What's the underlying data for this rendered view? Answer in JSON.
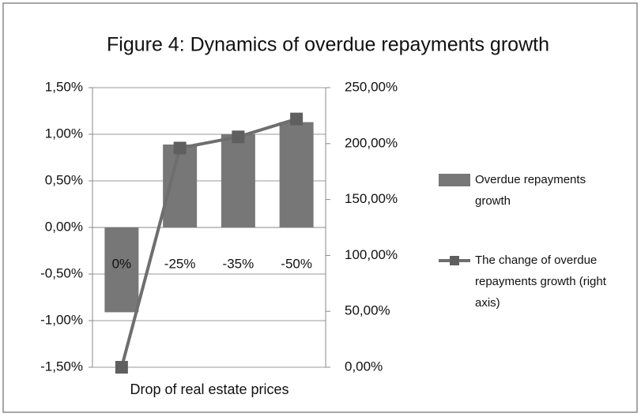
{
  "chart_data": {
    "type": "bar_line",
    "title": "Figure 4: Dynamics of overdue repayments growth",
    "x_label": "Drop of real estate prices",
    "categories": [
      "0%",
      "-25%",
      "-35%",
      "-50%"
    ],
    "series": [
      {
        "name": "Overdue repayments growth",
        "type": "bar",
        "axis": "y",
        "color": "#777777",
        "values": [
          -0.91,
          0.89,
          1.0,
          1.13
        ]
      },
      {
        "name": "The change of overdue repayments growth (right axis)",
        "type": "line",
        "axis": "y2",
        "color": "#6e6e6e",
        "values": [
          0,
          196,
          206,
          222
        ]
      }
    ],
    "ylim": [
      -1.5,
      1.5
    ],
    "yticks": [
      {
        "value": -1.5,
        "label": "-1,50%"
      },
      {
        "value": -1.0,
        "label": "-1,00%"
      },
      {
        "value": -0.5,
        "label": "-0,50%"
      },
      {
        "value": 0,
        "label": "0,00%"
      },
      {
        "value": 0.5,
        "label": "0,50%"
      },
      {
        "value": 1.0,
        "label": "1,00%"
      },
      {
        "value": 1.5,
        "label": "1,50%"
      }
    ],
    "y2lim": [
      0,
      250
    ],
    "y2ticks": [
      {
        "value": 0,
        "label": "0,00%"
      },
      {
        "value": 50,
        "label": "50,00%"
      },
      {
        "value": 100,
        "label": "100,00%"
      },
      {
        "value": 150,
        "label": "150,00%"
      },
      {
        "value": 200,
        "label": "200,00%"
      },
      {
        "value": 250,
        "label": "250,00%"
      }
    ],
    "grid": true,
    "legend": "right"
  }
}
